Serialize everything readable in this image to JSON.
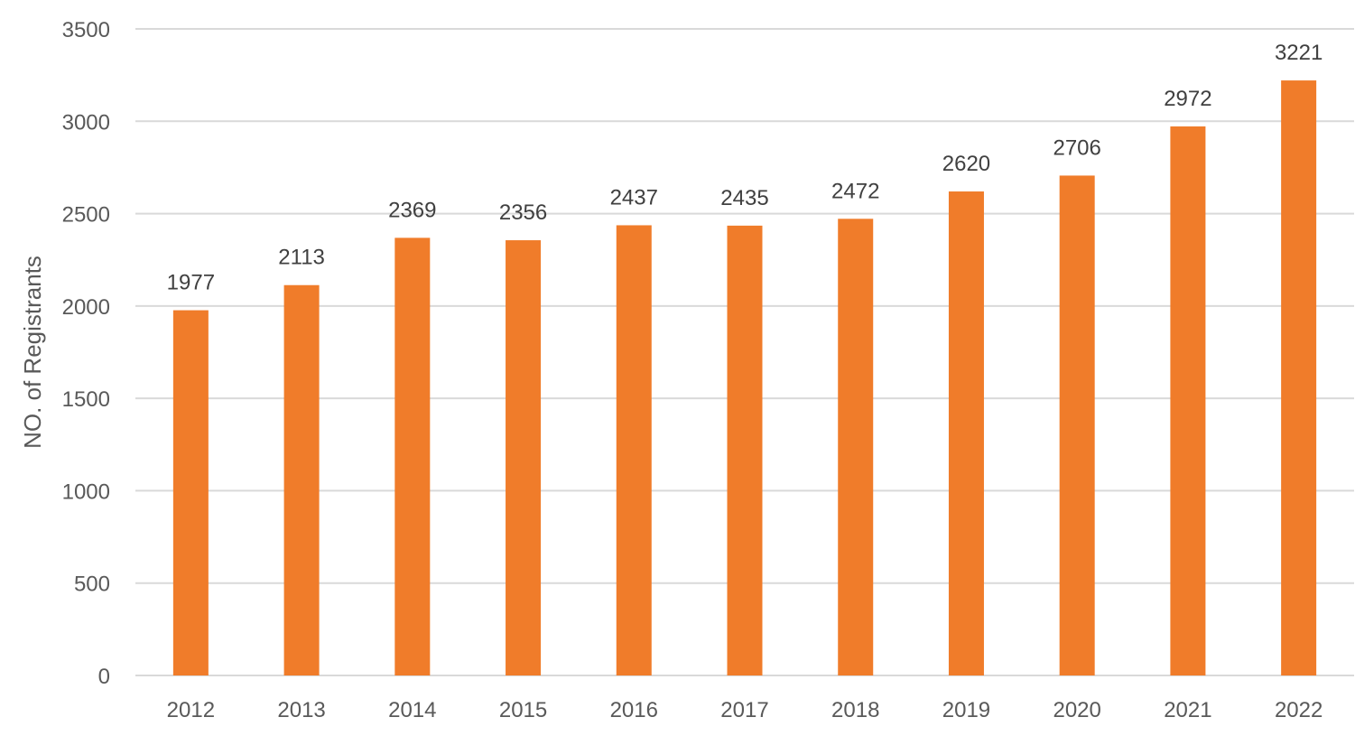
{
  "chart_data": {
    "type": "bar",
    "title": "",
    "xlabel": "",
    "ylabel": "NO. of Registrants",
    "ylim": [
      0,
      3500
    ],
    "ytick_step": 500,
    "grid": true,
    "legend": "none",
    "bar_color": "#f07c2a",
    "categories": [
      "2012",
      "2013",
      "2014",
      "2015",
      "2016",
      "2017",
      "2018",
      "2019",
      "2020",
      "2021",
      "2022"
    ],
    "values": [
      1977,
      2113,
      2369,
      2356,
      2437,
      2435,
      2472,
      2620,
      2706,
      2972,
      3221
    ]
  }
}
